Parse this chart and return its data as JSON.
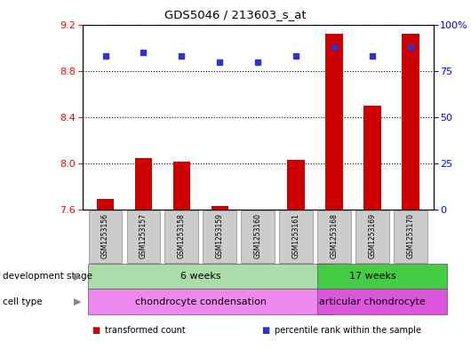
{
  "title": "GDS5046 / 213603_s_at",
  "samples": [
    "GSM1253156",
    "GSM1253157",
    "GSM1253158",
    "GSM1253159",
    "GSM1253160",
    "GSM1253161",
    "GSM1253168",
    "GSM1253169",
    "GSM1253170"
  ],
  "transformed_count": [
    7.69,
    8.05,
    8.02,
    7.63,
    7.6,
    8.03,
    9.12,
    8.5,
    9.12
  ],
  "percentile_rank": [
    83,
    85,
    83,
    80,
    80,
    83,
    88,
    83,
    88
  ],
  "ylim_left": [
    7.6,
    9.2
  ],
  "ylim_right": [
    0,
    100
  ],
  "yticks_left": [
    7.6,
    8.0,
    8.4,
    8.8,
    9.2
  ],
  "yticks_right": [
    0,
    25,
    50,
    75,
    100
  ],
  "bar_color": "#cc0000",
  "dot_color": "#3333cc",
  "bar_bottom": 7.6,
  "development_stage_groups": [
    {
      "label": "6 weeks",
      "start": 0,
      "end": 6,
      "color": "#aaddaa"
    },
    {
      "label": "17 weeks",
      "start": 6,
      "end": 9,
      "color": "#44cc44"
    }
  ],
  "cell_type_groups": [
    {
      "label": "chondrocyte condensation",
      "start": 0,
      "end": 6,
      "color": "#ee88ee"
    },
    {
      "label": "articular chondrocyte",
      "start": 6,
      "end": 9,
      "color": "#dd55dd"
    }
  ],
  "legend_items": [
    {
      "color": "#cc0000",
      "label": "transformed count"
    },
    {
      "color": "#3333cc",
      "label": "percentile rank within the sample"
    }
  ],
  "background_color": "#ffffff",
  "plot_bg": "#ffffff"
}
